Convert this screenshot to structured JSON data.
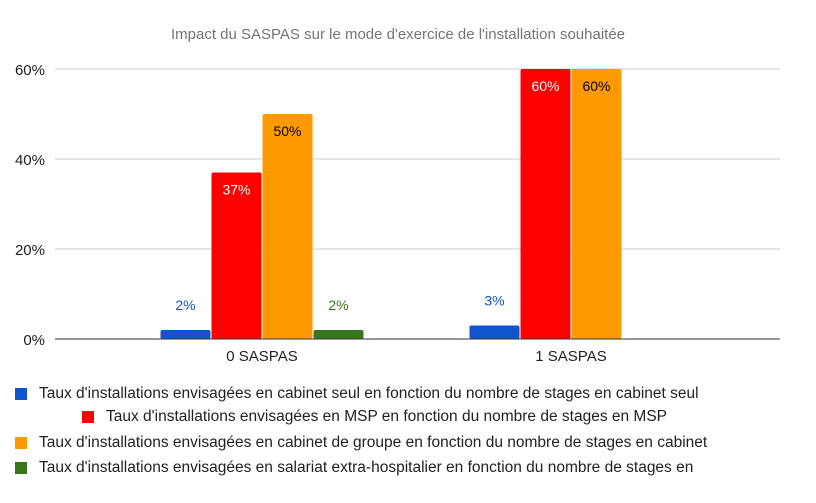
{
  "chart_data": {
    "type": "bar",
    "title": "Impact du SASPAS sur le mode d'exercice de l'installation souhaitée",
    "categories": [
      "0 SASPAS",
      "1 SASPAS"
    ],
    "ylim": [
      0,
      60
    ],
    "yticks": [
      0,
      20,
      40,
      60
    ],
    "ytick_labels": [
      "0%",
      "20%",
      "40%",
      "60%"
    ],
    "xlabel": "",
    "ylabel": "",
    "grid": true,
    "legend_position": "bottom",
    "series": [
      {
        "name": "Taux d'installations envisagées en cabinet seul en fonction du nombre de stages en cabinet seul",
        "color": "#1155cc",
        "values": [
          2,
          3
        ],
        "labels": [
          "2%",
          "3%"
        ],
        "label_color": "#1155cc"
      },
      {
        "name": "Taux d'installations envisagées en MSP en fonction du nombre de stages en MSP",
        "color": "#ff0000",
        "values": [
          37,
          60
        ],
        "labels": [
          "37%",
          "60%"
        ],
        "label_color": "#ffffff"
      },
      {
        "name": "Taux d'installations envisagées en cabinet de groupe en fonction du nombre de stages en cabinet",
        "color": "#ff9900",
        "values": [
          50,
          60
        ],
        "labels": [
          "50%",
          "60%"
        ],
        "label_color": "#000000"
      },
      {
        "name": "Taux d'installations envisagées en salariat extra-hospitalier en fonction du nombre de stages en",
        "color": "#38761d",
        "values": [
          2,
          null
        ],
        "labels": [
          "2%",
          null
        ],
        "label_color": "#38761d"
      }
    ]
  }
}
